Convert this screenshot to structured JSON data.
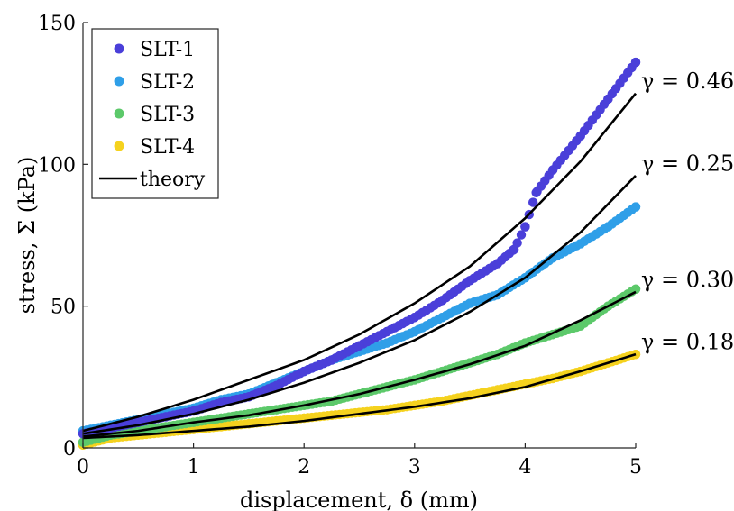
{
  "chart_data": {
    "type": "scatter",
    "xlabel": "displacement, δ (mm)",
    "ylabel": "stress, Σ (kPa)",
    "xlim": [
      0,
      5
    ],
    "ylim": [
      0,
      150
    ],
    "xticks": [
      0,
      1,
      2,
      3,
      4,
      5
    ],
    "yticks": [
      0,
      50,
      100,
      150
    ],
    "grid": false,
    "legend_position": "top-left",
    "series": [
      {
        "name": "SLT-1",
        "kind": "points",
        "color": "#4a3fd9",
        "x": [
          0,
          0.25,
          0.5,
          0.75,
          1,
          1.25,
          1.5,
          1.75,
          2,
          2.25,
          2.5,
          2.75,
          3,
          3.25,
          3.5,
          3.75,
          3.9,
          4.0,
          4.1,
          4.25,
          4.5,
          4.75,
          5
        ],
        "y": [
          5,
          7,
          9,
          11,
          13,
          16,
          18,
          22,
          27,
          31,
          36,
          41,
          46,
          52,
          59,
          65,
          70,
          78,
          90,
          98,
          110,
          123,
          136
        ]
      },
      {
        "name": "SLT-2",
        "kind": "points",
        "color": "#2f9fe8",
        "x": [
          0,
          0.25,
          0.5,
          0.75,
          1,
          1.25,
          1.5,
          1.75,
          2,
          2.25,
          2.5,
          2.75,
          3,
          3.25,
          3.5,
          3.75,
          4,
          4.25,
          4.5,
          4.75,
          5
        ],
        "y": [
          6,
          8,
          10,
          12,
          14,
          17,
          19,
          23,
          27,
          31,
          34,
          37,
          41,
          46,
          51,
          54,
          60,
          67,
          72,
          78,
          85
        ]
      },
      {
        "name": "SLT-3",
        "kind": "points",
        "color": "#5cc96a",
        "x": [
          0,
          0.25,
          0.5,
          0.75,
          1,
          1.25,
          1.5,
          1.75,
          2,
          2.25,
          2.5,
          2.75,
          3,
          3.25,
          3.5,
          3.75,
          4,
          4.25,
          4.5,
          4.75,
          5
        ],
        "y": [
          2,
          4.5,
          6,
          7.5,
          9,
          10.5,
          12,
          13.5,
          15,
          16.5,
          19,
          21.5,
          24,
          27,
          30,
          33,
          37,
          40,
          43,
          50,
          56
        ]
      },
      {
        "name": "SLT-4",
        "kind": "points",
        "color": "#f5d21e",
        "x": [
          0,
          0.25,
          0.5,
          0.75,
          1,
          1.25,
          1.5,
          1.75,
          2,
          2.25,
          2.5,
          2.75,
          3,
          3.25,
          3.5,
          3.75,
          4,
          4.25,
          4.5,
          4.75,
          5
        ],
        "y": [
          1,
          3.5,
          4.5,
          5.5,
          6.5,
          7.5,
          8.5,
          9.5,
          10.5,
          11.5,
          12.5,
          13.5,
          15,
          16.5,
          18.5,
          20.5,
          22.5,
          24.5,
          27,
          30,
          33
        ]
      },
      {
        "name": "theory",
        "kind": "lines",
        "color": "#000000",
        "curves": [
          {
            "label": "γ = 0.46",
            "x": [
              0,
              0.5,
              1,
              1.5,
              2,
              2.5,
              3,
              3.5,
              4,
              4.5,
              5
            ],
            "y": [
              6,
              11,
              17,
              24,
              31,
              40,
              51,
              64,
              81,
              101,
              125
            ]
          },
          {
            "label": "γ = 0.25",
            "x": [
              0,
              0.5,
              1,
              1.5,
              2,
              2.5,
              3,
              3.5,
              4,
              4.5,
              5
            ],
            "y": [
              5,
              8,
              12,
              17,
              23,
              30,
              38,
              48,
              60,
              76,
              96
            ]
          },
          {
            "label": "γ = 0.30",
            "x": [
              0,
              0.5,
              1,
              1.5,
              2,
              2.5,
              3,
              3.5,
              4,
              4.5,
              5
            ],
            "y": [
              4,
              6,
              9,
              11.5,
              15,
              19,
              24,
              29.5,
              36,
              45,
              55
            ]
          },
          {
            "label": "γ = 0.18",
            "x": [
              0,
              0.5,
              1,
              1.5,
              2,
              2.5,
              3,
              3.5,
              4,
              4.5,
              5
            ],
            "y": [
              3.5,
              4.5,
              6,
              7.5,
              9.5,
              12,
              14.5,
              17.5,
              21.5,
              27,
              33
            ]
          }
        ]
      }
    ]
  }
}
